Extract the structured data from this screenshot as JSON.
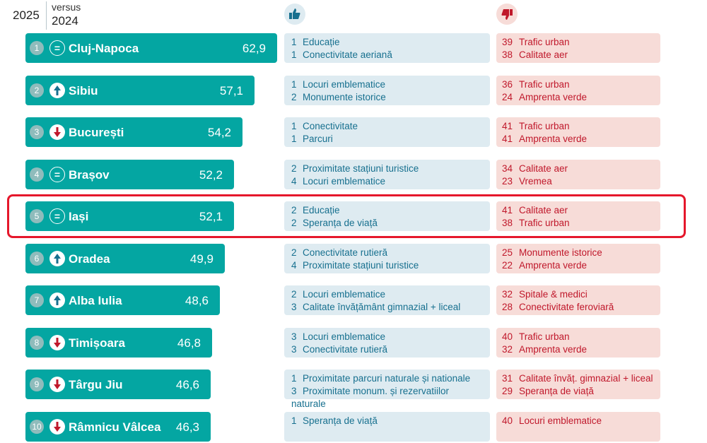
{
  "header": {
    "year": "2025",
    "versus": "versus",
    "prev_year": "2024"
  },
  "colors": {
    "bar": "#04a6a2",
    "positive": "#17708f",
    "negative": "#c0182b",
    "highlight": "#e5172b"
  },
  "rows": [
    {
      "rank": "1",
      "trend": "equal",
      "city": "Cluj-Napoca",
      "score": "62,9",
      "pos": [
        [
          "1",
          "Educație"
        ],
        [
          "1",
          "Conectivitate aeriană"
        ]
      ],
      "neg": [
        [
          "39",
          "Trafic urban"
        ],
        [
          "38",
          "Calitate aer"
        ]
      ]
    },
    {
      "rank": "2",
      "trend": "up",
      "city": "Sibiu",
      "score": "57,1",
      "pos": [
        [
          "1",
          "Locuri emblematice"
        ],
        [
          "2",
          "Monumente istorice"
        ]
      ],
      "neg": [
        [
          "36",
          "Trafic urban"
        ],
        [
          "24",
          "Amprenta verde"
        ]
      ]
    },
    {
      "rank": "3",
      "trend": "down",
      "city": "București",
      "score": "54,2",
      "pos": [
        [
          "1",
          "Conectivitate"
        ],
        [
          "1",
          "Parcuri"
        ]
      ],
      "neg": [
        [
          "41",
          "Trafic urban"
        ],
        [
          "41",
          "Amprenta verde"
        ]
      ]
    },
    {
      "rank": "4",
      "trend": "equal",
      "city": "Brașov",
      "score": "52,2",
      "pos": [
        [
          "2",
          "Proximitate stațiuni turistice"
        ],
        [
          "4",
          "Locuri emblematice"
        ]
      ],
      "neg": [
        [
          "34",
          "Calitate aer"
        ],
        [
          "23",
          "Vremea"
        ]
      ]
    },
    {
      "rank": "5",
      "trend": "equal",
      "city": "Iași",
      "score": "52,1",
      "pos": [
        [
          "2",
          "Educație"
        ],
        [
          "2",
          "Speranța de viață"
        ]
      ],
      "neg": [
        [
          "41",
          "Calitate aer"
        ],
        [
          "38",
          "Trafic urban"
        ]
      ]
    },
    {
      "rank": "6",
      "trend": "up",
      "city": "Oradea",
      "score": "49,9",
      "pos": [
        [
          "2",
          "Conectivitate rutieră"
        ],
        [
          "4",
          "Proximitate stațiuni turistice"
        ]
      ],
      "neg": [
        [
          "25",
          "Monumente istorice"
        ],
        [
          "22",
          "Amprenta verde"
        ]
      ]
    },
    {
      "rank": "7",
      "trend": "up",
      "city": "Alba Iulia",
      "score": "48,6",
      "pos": [
        [
          "2",
          "Locuri emblematice"
        ],
        [
          "3",
          "Calitate învățământ gimnazial + liceal"
        ]
      ],
      "neg": [
        [
          "32",
          "Spitale & medici"
        ],
        [
          "28",
          "Conectivitate feroviară"
        ]
      ]
    },
    {
      "rank": "8",
      "trend": "down",
      "city": "Timișoara",
      "score": "46,8",
      "pos": [
        [
          "3",
          "Locuri emblematice"
        ],
        [
          "3",
          "Conectivitate rutieră"
        ]
      ],
      "neg": [
        [
          "40",
          "Trafic urban"
        ],
        [
          "32",
          "Amprenta verde"
        ]
      ]
    },
    {
      "rank": "9",
      "trend": "down",
      "city": "Târgu Jiu",
      "score": "46,6",
      "pos": [
        [
          "1",
          "Proximitate parcuri naturale și nationale"
        ],
        [
          "3",
          "Proximitate monum. și rezervatiilor naturale"
        ]
      ],
      "neg": [
        [
          "31",
          "Calitate învăț. gimnazial + liceal"
        ],
        [
          "29",
          "Speranța de viață"
        ]
      ]
    },
    {
      "rank": "10",
      "trend": "down",
      "city": "Râmnicu Vâlcea",
      "score": "46,3",
      "pos": [
        [
          "1",
          "Speranța de viață"
        ]
      ],
      "neg": [
        [
          "40",
          "Locuri emblematice"
        ]
      ]
    }
  ]
}
